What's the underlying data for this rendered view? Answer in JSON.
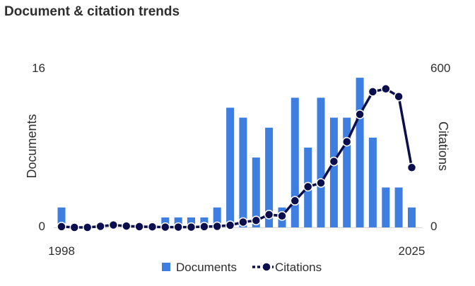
{
  "title": "Document & citation trends",
  "chart_data": {
    "type": "bar",
    "x": [
      1998,
      1999,
      2000,
      2001,
      2002,
      2003,
      2004,
      2005,
      2006,
      2007,
      2008,
      2009,
      2010,
      2011,
      2012,
      2013,
      2014,
      2015,
      2016,
      2017,
      2018,
      2019,
      2020,
      2021,
      2022,
      2023,
      2024,
      2025
    ],
    "series": [
      {
        "name": "Documents",
        "type": "bar",
        "axis": "left",
        "color": "#3d7ee0",
        "values": [
          2,
          0,
          0,
          0,
          0,
          0,
          0,
          0,
          1,
          1,
          1,
          1,
          2,
          12,
          11,
          7,
          10,
          2,
          13,
          8,
          13,
          11,
          11,
          15,
          9,
          4,
          4,
          2
        ]
      },
      {
        "name": "Citations",
        "type": "line",
        "axis": "right",
        "color": "#0b0e4d",
        "values": [
          3,
          0,
          0,
          4,
          9,
          5,
          3,
          2,
          1,
          1,
          1,
          3,
          4,
          8,
          20,
          26,
          48,
          43,
          100,
          153,
          167,
          248,
          322,
          425,
          510,
          521,
          492,
          225
        ]
      }
    ],
    "left_axis": {
      "label": "Documents",
      "range": [
        0,
        16
      ],
      "ticks": [
        "0",
        "16"
      ]
    },
    "right_axis": {
      "label": "Citations",
      "range": [
        0,
        600
      ],
      "ticks": [
        "0",
        "600"
      ]
    },
    "x_ticks": [
      "1998",
      "2025"
    ],
    "legend_position": "bottom",
    "grid": false
  }
}
